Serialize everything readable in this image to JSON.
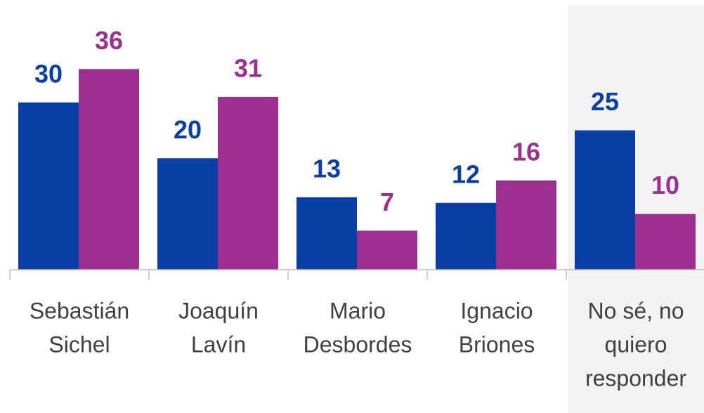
{
  "chart_data": {
    "type": "bar",
    "categories": [
      [
        "Sebastián",
        "Sichel"
      ],
      [
        "Joaquín",
        "Lavín"
      ],
      [
        "Mario",
        "Desbordes"
      ],
      [
        "Ignacio",
        "Briones"
      ],
      [
        "No sé, no",
        "quiero",
        "responder"
      ]
    ],
    "series": [
      {
        "color": "#0a3fa6",
        "values": [
          30,
          20,
          13,
          12,
          25
        ]
      },
      {
        "color": "#9c2f90",
        "values": [
          36,
          31,
          7,
          16,
          10
        ]
      }
    ],
    "ylim": [
      0,
      48
    ],
    "highlight_category": 4
  }
}
